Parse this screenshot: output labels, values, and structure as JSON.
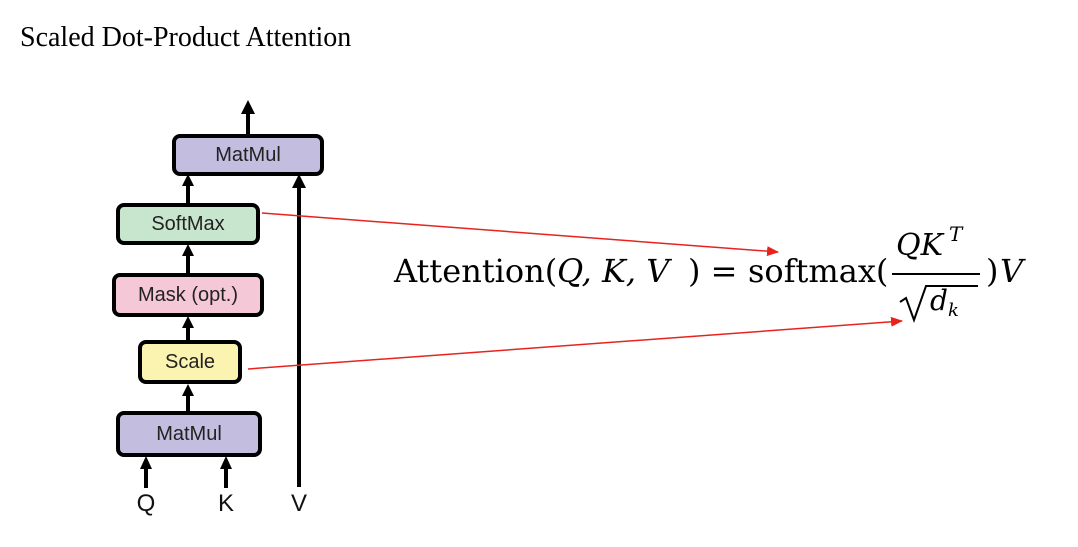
{
  "title": "Scaled Dot-Product Attention",
  "blocks": {
    "matmul_top": {
      "label": "MatMul",
      "color": "#c3bde0"
    },
    "softmax": {
      "label": "SoftMax",
      "color": "#c8e6ce"
    },
    "mask": {
      "label": "Mask (opt.)",
      "color": "#f4c8d6"
    },
    "scale": {
      "label": "Scale",
      "color": "#fbf3b0"
    },
    "matmul_bottom": {
      "label": "MatMul",
      "color": "#c3bde0"
    }
  },
  "inputs": {
    "q": "Q",
    "k": "K",
    "v": "V"
  },
  "formula": {
    "lhs": "Attention(",
    "args": "Q, K, V",
    "lhs_close": ") =",
    "func": "softmax(",
    "numerator": "QK",
    "numerator_sup": "T",
    "denominator": "d",
    "denominator_sub": "k",
    "tail": ")",
    "tail_var": "V"
  },
  "annotation_color": "#e8231e"
}
